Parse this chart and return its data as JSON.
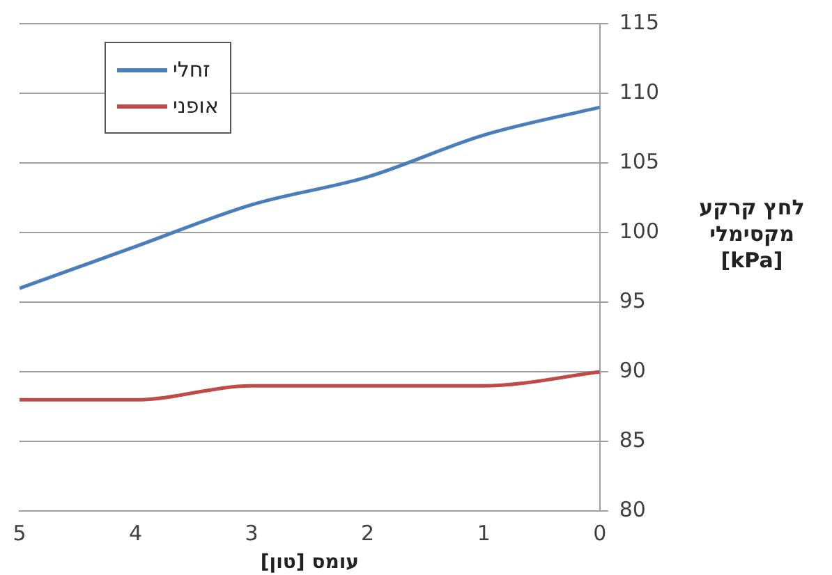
{
  "chart_data": {
    "type": "line",
    "xlabel": "עומס [טון]",
    "ylabel": "לחץ קרקע\nמקסימלי\n[kPa]",
    "x": [
      5,
      4,
      3,
      2,
      1,
      0
    ],
    "series": [
      {
        "name": "זחלי",
        "color": "#4a7ebb",
        "values": [
          96,
          99,
          102,
          104,
          107,
          109
        ]
      },
      {
        "name": "אופני",
        "color": "#be4b48",
        "values": [
          88,
          88,
          89,
          89,
          89,
          90
        ]
      }
    ],
    "xlim": [
      5,
      0
    ],
    "xticks": [
      5,
      4,
      3,
      2,
      1,
      0
    ],
    "ylim": [
      80,
      115
    ],
    "yticks": [
      80,
      85,
      90,
      95,
      100,
      105,
      110,
      115
    ],
    "grid": "y",
    "legend": "top left",
    "marker": "none",
    "line_style": "solid"
  }
}
